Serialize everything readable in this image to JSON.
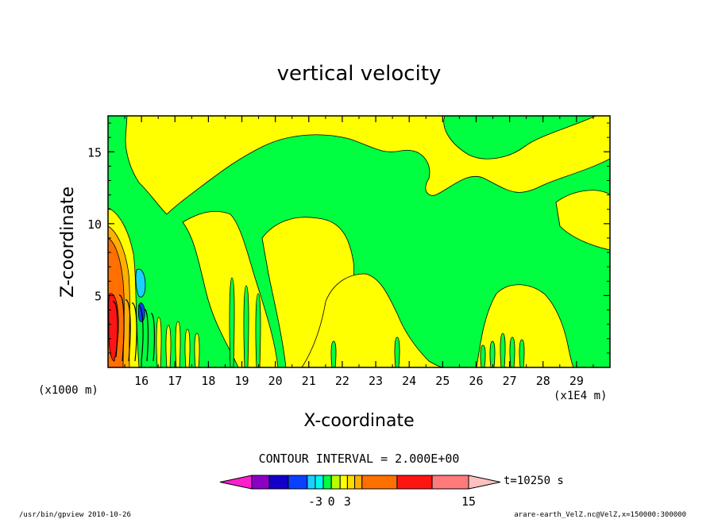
{
  "chart_data": {
    "type": "heatmap",
    "title": "vertical velocity",
    "xlabel": "X-coordinate",
    "ylabel": "Z-coordinate",
    "x_units": "(x1E4 m)",
    "y_units": "(x1000 m)",
    "xlim": [
      15.0,
      30.0
    ],
    "ylim": [
      0.0,
      17.5
    ],
    "x_ticks": [
      16,
      17,
      18,
      19,
      20,
      21,
      22,
      23,
      24,
      25,
      26,
      27,
      28,
      29
    ],
    "y_ticks": [
      5,
      10,
      15
    ],
    "grid": false,
    "contour_interval_label": "CONTOUR INTERVAL = 2.000E+00",
    "colorbar": {
      "colors": [
        "#ff1dd0",
        "#8a00c6",
        "#1200c8",
        "#0a40ff",
        "#19d0ff",
        "#00f7f0",
        "#00ff40",
        "#b9ff00",
        "#ffff00",
        "#ffdc00",
        "#ffb000",
        "#ff7000",
        "#ff1414",
        "#ff7a7a",
        "#ffc0c0"
      ],
      "tick_labels": [
        "-3",
        "0",
        "3",
        "15"
      ],
      "time_label": "t=10250 s"
    },
    "footer_left": "/usr/bin/gpview   2010-10-26",
    "footer_right": "arare-earth_VelZ.nc@VelZ,x=150000:300000"
  }
}
